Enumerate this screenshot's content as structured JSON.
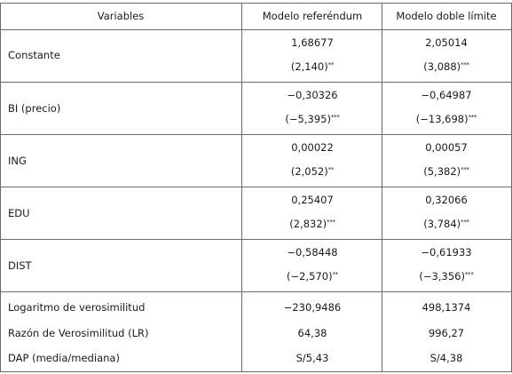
{
  "header": {
    "variables": "Variables",
    "col_a": "Modelo referéndum",
    "col_b": "Modelo doble límite"
  },
  "rows": [
    {
      "label": "Constante",
      "a_coef": "1,68677",
      "a_t": "(2,140)",
      "a_sig": "**",
      "b_coef": "2,05014",
      "b_t": "(3,088)",
      "b_sig": "***"
    },
    {
      "label": "BI (precio)",
      "a_coef": "−0,30326",
      "a_t": "(−5,395)",
      "a_sig": "***",
      "b_coef": "−0,64987",
      "b_t": "(−13,698)",
      "b_sig": "***"
    },
    {
      "label": "ING",
      "a_coef": "0,00022",
      "a_t": "(2,052)",
      "a_sig": "**",
      "b_coef": "0,00057",
      "b_t": "(5,382)",
      "b_sig": "***"
    },
    {
      "label": "EDU",
      "a_coef": "0,25407",
      "a_t": "(2,832)",
      "a_sig": "***",
      "b_coef": "0,32066",
      "b_t": "(3,784)",
      "b_sig": "***"
    },
    {
      "label": "DIST",
      "a_coef": "−0,58448",
      "a_t": "(−2,570)",
      "a_sig": "**",
      "b_coef": "−0,61933",
      "b_t": "(−3,356)",
      "b_sig": "***"
    }
  ],
  "stats": [
    {
      "label": "Logaritmo de verosimilitud",
      "a": "−230,9486",
      "b": "498,1374"
    },
    {
      "label": "Razón de Verosimilitud (LR)",
      "a": "64,38",
      "b": "996,27"
    },
    {
      "label": "DAP (media/mediana)",
      "a": "S/5,43",
      "b": "S/4,38"
    }
  ]
}
